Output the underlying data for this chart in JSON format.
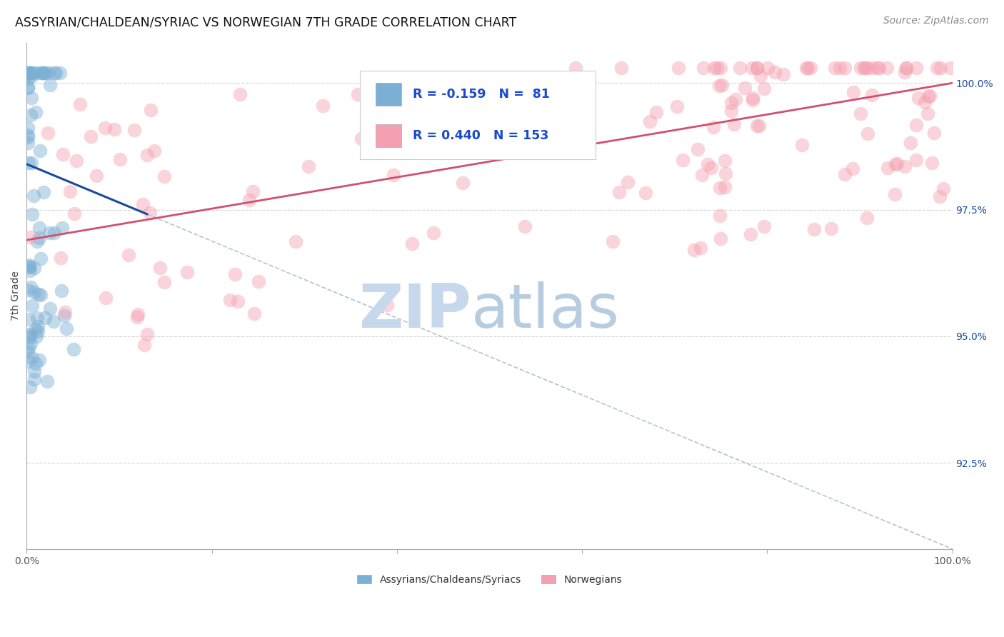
{
  "title": "ASSYRIAN/CHALDEAN/SYRIAC VS NORWEGIAN 7TH GRADE CORRELATION CHART",
  "source": "Source: ZipAtlas.com",
  "ylabel": "7th Grade",
  "ylabel_right_ticks": [
    1.0,
    0.975,
    0.95,
    0.925
  ],
  "ylabel_right_labels": [
    "100.0%",
    "97.5%",
    "95.0%",
    "92.5%"
  ],
  "xmin": 0.0,
  "xmax": 1.0,
  "ymin": 0.908,
  "ymax": 1.008,
  "blue_R": -0.159,
  "blue_N": 81,
  "pink_R": 0.44,
  "pink_N": 153,
  "blue_label": "Assyrians/Chaldeans/Syriacs",
  "pink_label": "Norwegians",
  "blue_color": "#7bafd4",
  "pink_color": "#f4a0b0",
  "blue_line_color": "#1a4a9e",
  "pink_line_color": "#d05070",
  "legend_R_color": "#1a4acc",
  "watermark_zip_color": "#c8d8ec",
  "watermark_atlas_color": "#b8cce0",
  "grid_color": "#cccccc",
  "blue_trend_x0": 0.0,
  "blue_trend_y0": 0.984,
  "blue_trend_x1": 1.0,
  "blue_trend_y1": 0.908,
  "blue_trend_solid_end": 0.13,
  "pink_trend_x0": 0.0,
  "pink_trend_y0": 0.969,
  "pink_trend_x1": 1.0,
  "pink_trend_y1": 1.0
}
